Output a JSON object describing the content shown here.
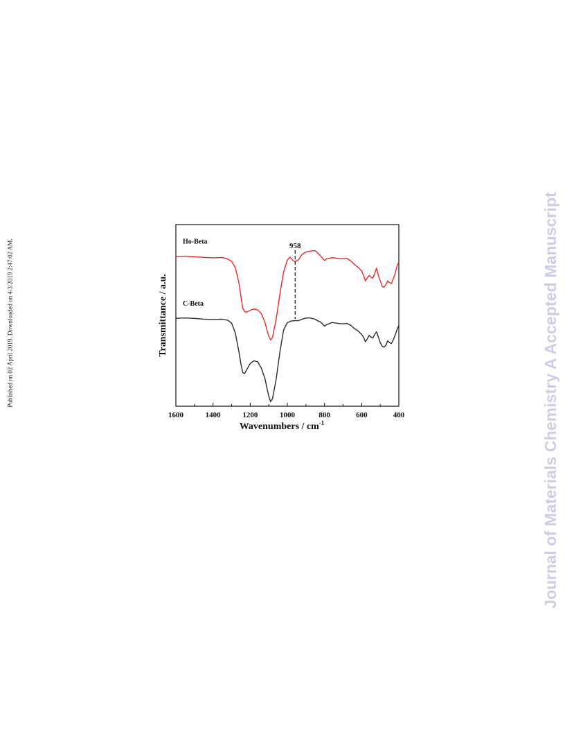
{
  "side_note": "Published on 02 April 2019. Downloaded on 4/3/2019 2:47:02 AM.",
  "watermark": "Journal of Materials Chemistry A Accepted Manuscript",
  "chart_data": {
    "type": "line",
    "xlabel": "Wavenumbers / cm",
    "xlabel_superscript": "-1",
    "ylabel": "Transmittance / a.u.",
    "xlim": [
      1600,
      400
    ],
    "x_reversed": true,
    "xticks": [
      1600,
      1400,
      1200,
      1000,
      800,
      600,
      400
    ],
    "yticks_shown": false,
    "grid": false,
    "legend": "curve labels placed above each trace on the left",
    "colors": {
      "Ho-Beta": "#e8282a",
      "C-Beta": "#2a2a2a"
    },
    "annotation": {
      "text": "958",
      "x": 958,
      "style": "dashed vertical line"
    },
    "series": [
      {
        "name": "Ho-Beta",
        "x": [
          1600,
          1550,
          1500,
          1450,
          1400,
          1350,
          1320,
          1300,
          1280,
          1260,
          1250,
          1240,
          1230,
          1220,
          1200,
          1180,
          1160,
          1140,
          1120,
          1110,
          1100,
          1090,
          1080,
          1060,
          1040,
          1020,
          1000,
          985,
          970,
          958,
          940,
          920,
          900,
          880,
          860,
          850,
          840,
          820,
          800,
          790,
          780,
          760,
          740,
          720,
          700,
          680,
          660,
          640,
          620,
          600,
          590,
          580,
          570,
          560,
          550,
          540,
          530,
          520,
          510,
          500,
          490,
          480,
          470,
          460,
          450,
          440,
          430,
          420,
          410,
          400
        ],
        "y": [
          0.82,
          0.823,
          0.823,
          0.823,
          0.821,
          0.82,
          0.813,
          0.795,
          0.76,
          0.68,
          0.6,
          0.54,
          0.52,
          0.518,
          0.528,
          0.535,
          0.53,
          0.51,
          0.46,
          0.42,
          0.385,
          0.365,
          0.378,
          0.48,
          0.62,
          0.74,
          0.805,
          0.82,
          0.805,
          0.795,
          0.81,
          0.835,
          0.845,
          0.855,
          0.86,
          0.855,
          0.845,
          0.823,
          0.805,
          0.808,
          0.815,
          0.815,
          0.813,
          0.815,
          0.814,
          0.81,
          0.8,
          0.785,
          0.765,
          0.745,
          0.72,
          0.69,
          0.705,
          0.72,
          0.71,
          0.705,
          0.73,
          0.76,
          0.72,
          0.69,
          0.66,
          0.655,
          0.67,
          0.69,
          0.68,
          0.675,
          0.7,
          0.73,
          0.77,
          0.795
        ]
      },
      {
        "name": "C-Beta",
        "x": [
          1600,
          1550,
          1500,
          1450,
          1400,
          1380,
          1350,
          1320,
          1300,
          1280,
          1260,
          1250,
          1240,
          1230,
          1220,
          1200,
          1180,
          1160,
          1140,
          1120,
          1110,
          1100,
          1090,
          1080,
          1060,
          1040,
          1020,
          1000,
          980,
          958,
          940,
          920,
          900,
          880,
          860,
          850,
          840,
          820,
          800,
          790,
          780,
          760,
          740,
          720,
          700,
          680,
          660,
          640,
          620,
          600,
          590,
          580,
          570,
          560,
          550,
          540,
          530,
          520,
          510,
          500,
          490,
          480,
          470,
          460,
          450,
          440,
          430,
          420,
          410,
          400
        ],
        "y": [
          0.48,
          0.483,
          0.484,
          0.483,
          0.481,
          0.476,
          0.48,
          0.476,
          0.455,
          0.4,
          0.3,
          0.23,
          0.185,
          0.18,
          0.198,
          0.235,
          0.25,
          0.245,
          0.21,
          0.15,
          0.1,
          0.055,
          0.025,
          0.04,
          0.15,
          0.3,
          0.42,
          0.46,
          0.465,
          0.47,
          0.475,
          0.478,
          0.482,
          0.488,
          0.485,
          0.478,
          0.47,
          0.46,
          0.443,
          0.445,
          0.455,
          0.458,
          0.455,
          0.458,
          0.456,
          0.452,
          0.445,
          0.432,
          0.415,
          0.395,
          0.38,
          0.355,
          0.37,
          0.39,
          0.38,
          0.375,
          0.395,
          0.41,
          0.38,
          0.35,
          0.33,
          0.325,
          0.335,
          0.36,
          0.35,
          0.345,
          0.365,
          0.39,
          0.42,
          0.445
        ]
      }
    ]
  }
}
